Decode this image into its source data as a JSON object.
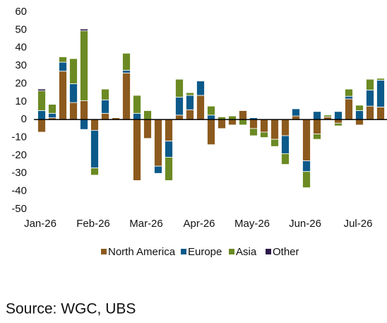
{
  "chart_data": {
    "type": "bar",
    "stacked": true,
    "categories": [
      "Jan-26",
      null,
      null,
      null,
      null,
      "Feb-26",
      null,
      null,
      null,
      null,
      "Mar-26",
      null,
      null,
      null,
      null,
      "Apr-26",
      null,
      null,
      null,
      null,
      "May-26",
      null,
      null,
      null,
      null,
      "Jun-26",
      null,
      null,
      null,
      null,
      "Jul-26",
      null,
      null
    ],
    "series": [
      {
        "name": "North America",
        "color": "#8c5a1e",
        "values": [
          -7,
          1,
          27,
          9.5,
          10.5,
          -6,
          3.5,
          1,
          26,
          -34,
          -10.5,
          -26,
          -12,
          2.5,
          5.5,
          13.5,
          -14,
          -5,
          -3,
          5,
          -5,
          -7,
          -11,
          -9,
          2,
          -23,
          -8,
          1.5,
          -2,
          11.5,
          -3,
          7.5,
          7
        ]
      },
      {
        "name": "Europe",
        "color": "#0b5a8a",
        "values": [
          5,
          2.5,
          5,
          10.5,
          -5.5,
          -21,
          7.5,
          null,
          1.5,
          3.5,
          null,
          -4,
          -9,
          10,
          8,
          8,
          2.5,
          null,
          null,
          null,
          1,
          null,
          null,
          -10,
          4,
          -6,
          4.5,
          null,
          4.5,
          1.5,
          5,
          9,
          15
        ]
      },
      {
        "name": "Asia",
        "color": "#6b8a23",
        "values": [
          11,
          5,
          3,
          14,
          39,
          -4,
          6,
          null,
          9.5,
          10,
          5,
          null,
          -13,
          10,
          1.5,
          null,
          5,
          1.5,
          2,
          -3,
          -4,
          -3,
          -4,
          -6,
          null,
          -9,
          -3,
          1,
          -1.5,
          4,
          3,
          6,
          1
        ]
      },
      {
        "name": "Other",
        "color": "#2d1a4a",
        "values": [
          1,
          null,
          null,
          null,
          1,
          null,
          null,
          null,
          null,
          null,
          null,
          null,
          null,
          null,
          null,
          null,
          null,
          null,
          null,
          null,
          null,
          null,
          null,
          null,
          null,
          null,
          null,
          null,
          null,
          null,
          null,
          null,
          null
        ]
      }
    ],
    "ylim": [
      -50,
      60
    ],
    "yticks": [
      -50,
      -40,
      -30,
      -20,
      -10,
      0,
      10,
      20,
      30,
      40,
      50,
      60
    ],
    "grid": false,
    "legend": "bottom"
  },
  "source": "Source: WGC, UBS"
}
